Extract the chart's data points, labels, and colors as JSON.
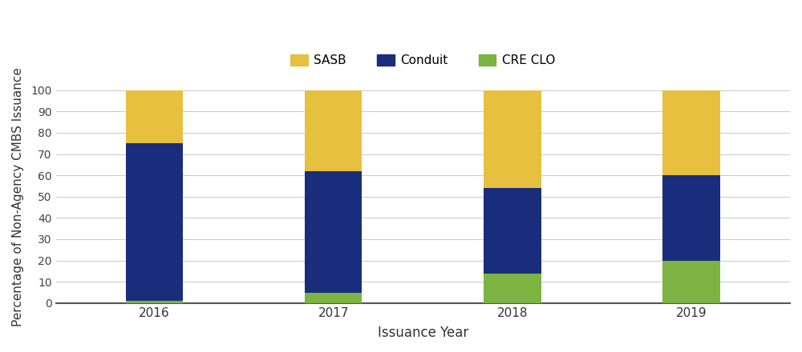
{
  "categories": [
    "2016",
    "2017",
    "2018",
    "2019"
  ],
  "cre_clo": [
    1,
    5,
    14,
    20
  ],
  "conduit": [
    74,
    57,
    40,
    40
  ],
  "sasb": [
    25,
    38,
    46,
    40
  ],
  "colors": {
    "sasb": "#E8C040",
    "conduit": "#1A2D7C",
    "cre_clo": "#7CB342"
  },
  "xlabel": "Issuance Year",
  "ylabel": "Percentage of Non-Agency CMBS Issuance",
  "ylim": [
    0,
    100
  ],
  "yticks": [
    0,
    10,
    20,
    30,
    40,
    50,
    60,
    70,
    80,
    90,
    100
  ],
  "legend_labels": [
    "SASB",
    "Conduit",
    "CRE CLO"
  ],
  "background_color": "#ffffff",
  "bar_width": 0.32,
  "figsize": [
    10.0,
    4.4
  ],
  "dpi": 100
}
